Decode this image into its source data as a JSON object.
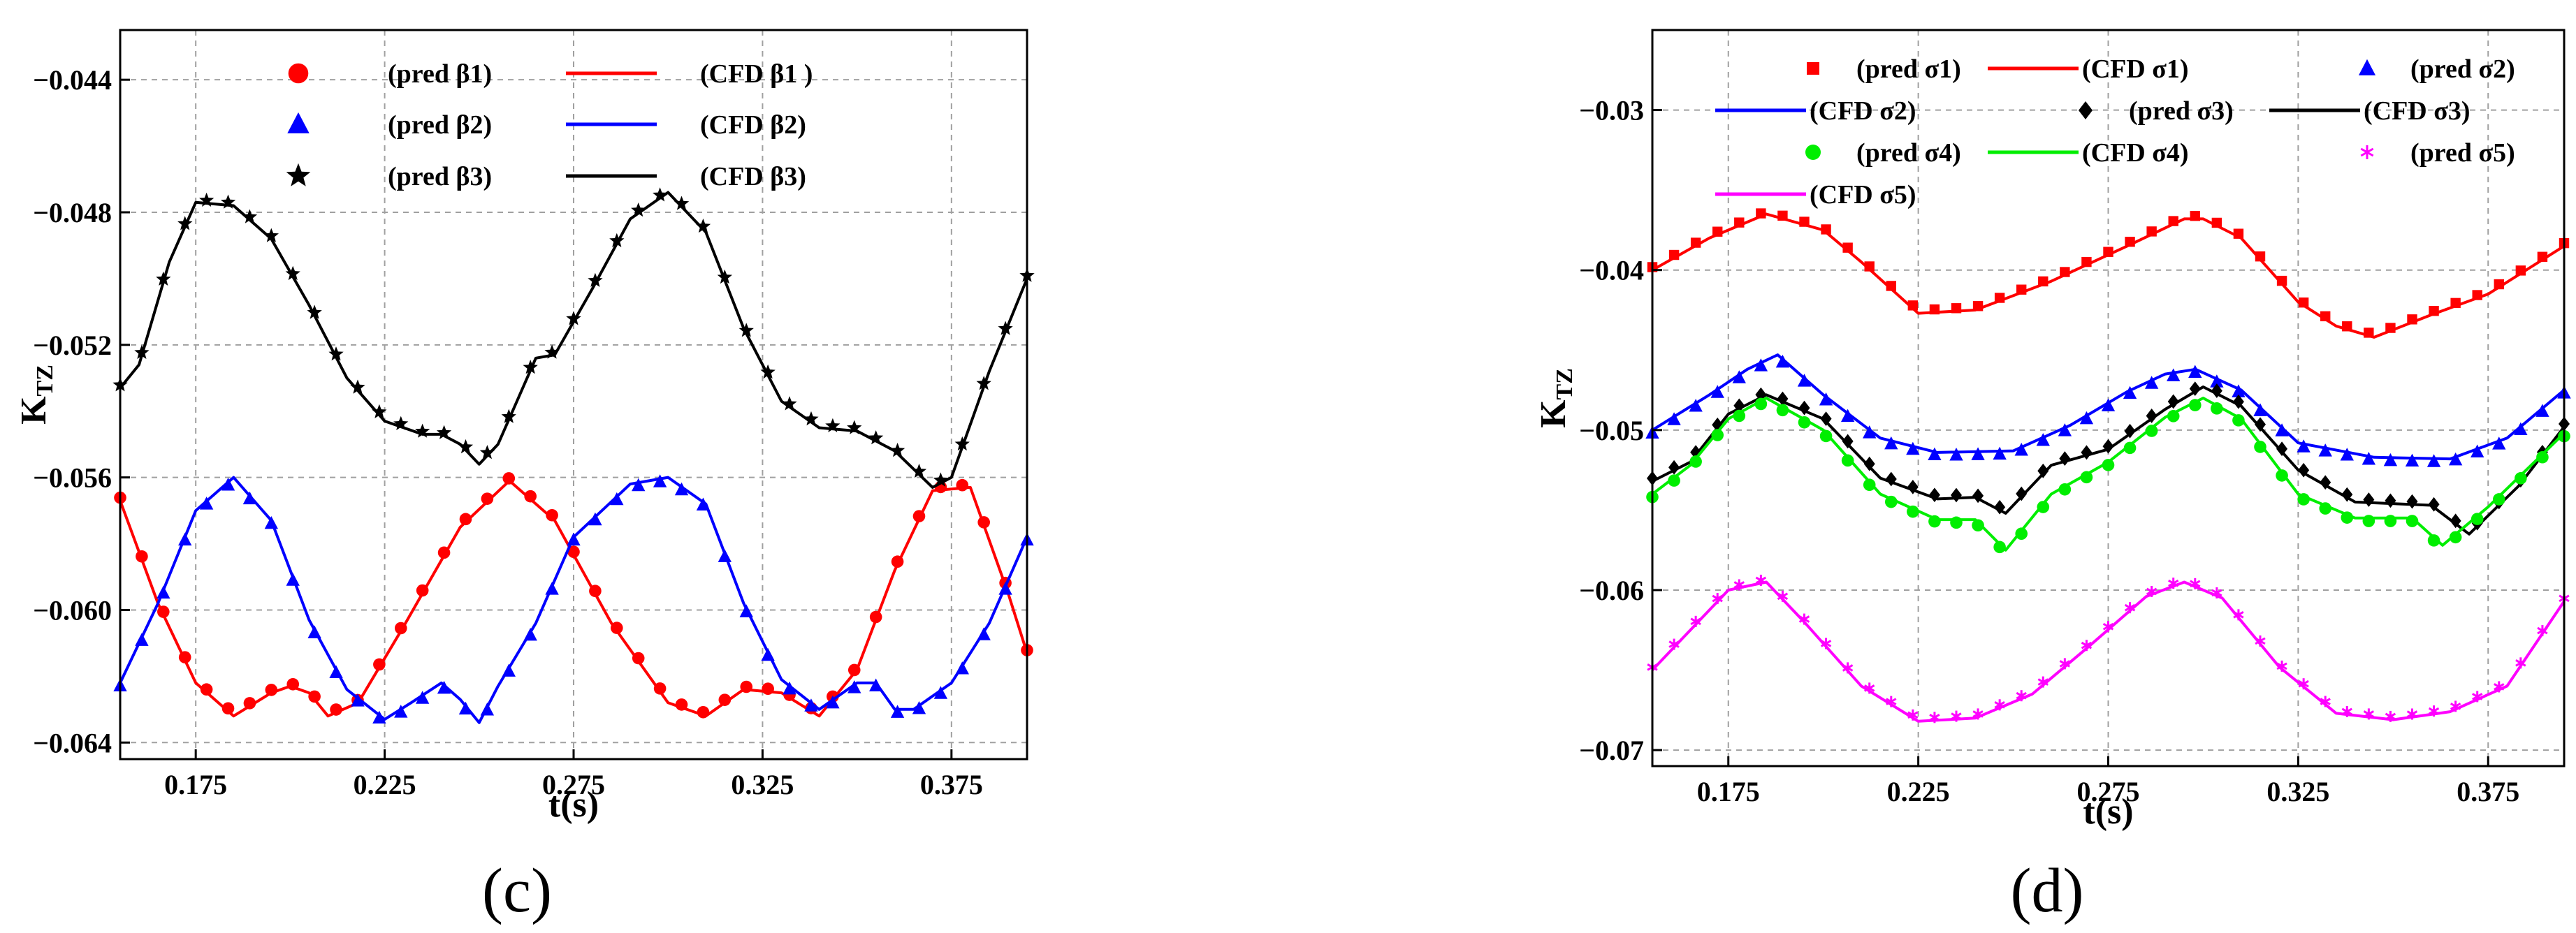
{
  "chart_data": [
    {
      "type": "line",
      "panel_label": "(c)",
      "xlabel": "t(s)",
      "ylabel": "K",
      "ylabel_sub": "TZ",
      "xlim": [
        0.155,
        0.395
      ],
      "ylim": [
        -0.0645,
        -0.0425
      ],
      "xticks": [
        0.175,
        0.225,
        0.275,
        0.325,
        0.375
      ],
      "xtick_labels": [
        "0.175",
        "0.225",
        "0.275",
        "0.325",
        "0.375"
      ],
      "yticks": [
        -0.044,
        -0.048,
        -0.052,
        -0.056,
        -0.06,
        -0.064
      ],
      "ytick_labels": [
        "−0.044",
        "−0.048",
        "−0.052",
        "−0.056",
        "−0.060",
        "−0.064"
      ],
      "grid": true,
      "legend_position": "top-center",
      "series": [
        {
          "name": "β1",
          "pred_label": "(pred    β1)",
          "cfd_label": "(CFD    β1 )",
          "color": "#ff0000",
          "marker": "circle",
          "x": [
            0.155,
            0.165,
            0.175,
            0.185,
            0.195,
            0.2,
            0.205,
            0.21,
            0.218,
            0.23,
            0.245,
            0.258,
            0.27,
            0.285,
            0.3,
            0.31,
            0.32,
            0.33,
            0.34,
            0.35,
            0.36,
            0.37,
            0.38,
            0.39,
            0.395
          ],
          "y": [
            -0.0567,
            -0.0598,
            -0.0622,
            -0.0632,
            -0.0625,
            -0.0623,
            -0.0625,
            -0.0632,
            -0.0628,
            -0.0605,
            -0.0575,
            -0.0561,
            -0.0573,
            -0.0604,
            -0.0628,
            -0.0632,
            -0.0624,
            -0.0625,
            -0.0632,
            -0.0618,
            -0.0588,
            -0.0564,
            -0.0563,
            -0.0595,
            -0.0613
          ]
        },
        {
          "name": "β2",
          "pred_label": "(pred    β2)",
          "cfd_label": "(CFD    β2)",
          "color": "#0000ff",
          "marker": "triangle",
          "x": [
            0.155,
            0.165,
            0.175,
            0.185,
            0.195,
            0.205,
            0.215,
            0.225,
            0.232,
            0.24,
            0.245,
            0.25,
            0.255,
            0.265,
            0.275,
            0.29,
            0.3,
            0.31,
            0.32,
            0.33,
            0.34,
            0.35,
            0.355,
            0.36,
            0.365,
            0.375,
            0.385,
            0.395
          ],
          "y": [
            -0.0622,
            -0.0598,
            -0.057,
            -0.056,
            -0.0573,
            -0.0603,
            -0.0624,
            -0.0633,
            -0.0628,
            -0.0622,
            -0.0627,
            -0.0634,
            -0.0623,
            -0.0604,
            -0.0578,
            -0.0562,
            -0.056,
            -0.0568,
            -0.0598,
            -0.0621,
            -0.063,
            -0.0622,
            -0.0622,
            -0.063,
            -0.063,
            -0.0622,
            -0.0604,
            -0.0578
          ]
        },
        {
          "name": "β3",
          "pred_label": "(pred    β3)",
          "cfd_label": "(CFD    β3)",
          "color": "#000000",
          "marker": "star",
          "x": [
            0.155,
            0.16,
            0.168,
            0.175,
            0.185,
            0.195,
            0.205,
            0.215,
            0.225,
            0.235,
            0.24,
            0.245,
            0.25,
            0.255,
            0.26,
            0.265,
            0.27,
            0.28,
            0.29,
            0.3,
            0.31,
            0.32,
            0.33,
            0.34,
            0.35,
            0.36,
            0.37,
            0.375,
            0.385,
            0.395
          ],
          "y": [
            -0.0533,
            -0.0526,
            -0.0495,
            -0.0477,
            -0.0478,
            -0.0488,
            -0.0508,
            -0.053,
            -0.0543,
            -0.0547,
            -0.0547,
            -0.055,
            -0.0556,
            -0.055,
            -0.0537,
            -0.0524,
            -0.0523,
            -0.0503,
            -0.0482,
            -0.0474,
            -0.0486,
            -0.0515,
            -0.0537,
            -0.0545,
            -0.0546,
            -0.0552,
            -0.0563,
            -0.056,
            -0.0528,
            -0.05
          ]
        }
      ]
    },
    {
      "type": "line",
      "panel_label": "(d)",
      "xlabel": "t(s)",
      "ylabel": "K",
      "ylabel_sub": "TZ",
      "xlim": [
        0.155,
        0.395
      ],
      "ylim": [
        -0.071,
        -0.025
      ],
      "xticks": [
        0.175,
        0.225,
        0.275,
        0.325,
        0.375
      ],
      "xtick_labels": [
        "0.175",
        "0.225",
        "0.275",
        "0.325",
        "0.375"
      ],
      "yticks": [
        -0.03,
        -0.04,
        -0.05,
        -0.06,
        -0.07
      ],
      "ytick_labels": [
        "−0.03",
        "−0.04",
        "−0.05",
        "−0.06",
        "−0.07"
      ],
      "grid": true,
      "legend_position": "top",
      "legend_items": [
        {
          "label": "(pred   σ1)",
          "kind": "marker",
          "series": 0
        },
        {
          "label": "(CFD   σ1)",
          "kind": "line",
          "series": 0
        },
        {
          "label": "(pred   σ2)",
          "kind": "marker",
          "series": 1
        },
        {
          "label": "(CFD   σ2)",
          "kind": "line",
          "series": 1
        },
        {
          "label": "(pred   σ3)",
          "kind": "marker",
          "series": 2
        },
        {
          "label": "(CFD   σ3)",
          "kind": "line",
          "series": 2
        },
        {
          "label": "(pred   σ4)",
          "kind": "marker",
          "series": 3
        },
        {
          "label": "(CFD   σ4)",
          "kind": "line",
          "series": 3
        },
        {
          "label": "(pred   σ5)",
          "kind": "marker",
          "series": 4
        },
        {
          "label": "(CFD   σ5)",
          "kind": "line",
          "series": 4
        }
      ],
      "series": [
        {
          "name": "σ1",
          "color": "#ff0000",
          "marker": "square",
          "x": [
            0.155,
            0.17,
            0.185,
            0.2,
            0.21,
            0.225,
            0.24,
            0.26,
            0.28,
            0.295,
            0.3,
            0.31,
            0.325,
            0.335,
            0.345,
            0.36,
            0.375,
            0.395
          ],
          "y": [
            -0.04,
            -0.038,
            -0.0365,
            -0.0375,
            -0.0395,
            -0.0427,
            -0.0425,
            -0.0407,
            -0.0385,
            -0.0368,
            -0.0368,
            -0.038,
            -0.042,
            -0.0435,
            -0.0442,
            -0.0428,
            -0.0415,
            -0.0385
          ]
        },
        {
          "name": "σ2",
          "color": "#0000ff",
          "marker": "triangle",
          "x": [
            0.155,
            0.17,
            0.18,
            0.188,
            0.2,
            0.215,
            0.23,
            0.25,
            0.265,
            0.28,
            0.29,
            0.298,
            0.31,
            0.325,
            0.345,
            0.365,
            0.38,
            0.395
          ],
          "y": [
            -0.05,
            -0.0478,
            -0.0462,
            -0.0453,
            -0.0478,
            -0.0505,
            -0.0514,
            -0.0513,
            -0.0497,
            -0.0476,
            -0.0465,
            -0.0462,
            -0.0475,
            -0.0508,
            -0.0517,
            -0.0518,
            -0.0505,
            -0.0475
          ]
        },
        {
          "name": "σ3",
          "color": "#000000",
          "marker": "diamond",
          "x": [
            0.155,
            0.165,
            0.175,
            0.185,
            0.2,
            0.215,
            0.23,
            0.24,
            0.248,
            0.26,
            0.275,
            0.29,
            0.3,
            0.31,
            0.325,
            0.34,
            0.36,
            0.37,
            0.383,
            0.395
          ],
          "y": [
            -0.0532,
            -0.052,
            -0.049,
            -0.0478,
            -0.0493,
            -0.053,
            -0.0543,
            -0.0542,
            -0.0552,
            -0.0522,
            -0.0512,
            -0.0487,
            -0.0473,
            -0.0485,
            -0.0525,
            -0.0545,
            -0.0547,
            -0.0565,
            -0.0535,
            -0.0498
          ]
        },
        {
          "name": "σ4",
          "color": "#00ee00",
          "marker": "circle",
          "x": [
            0.155,
            0.165,
            0.175,
            0.185,
            0.2,
            0.215,
            0.23,
            0.24,
            0.248,
            0.26,
            0.275,
            0.29,
            0.3,
            0.31,
            0.325,
            0.34,
            0.355,
            0.363,
            0.375,
            0.395
          ],
          "y": [
            -0.054,
            -0.0522,
            -0.0493,
            -0.048,
            -0.05,
            -0.054,
            -0.0556,
            -0.0556,
            -0.0575,
            -0.054,
            -0.052,
            -0.0492,
            -0.048,
            -0.0493,
            -0.054,
            -0.0555,
            -0.0555,
            -0.0572,
            -0.0548,
            -0.0502
          ]
        },
        {
          "name": "σ5",
          "color": "#ff00ff",
          "marker": "asterisk",
          "x": [
            0.155,
            0.165,
            0.175,
            0.185,
            0.195,
            0.21,
            0.225,
            0.24,
            0.255,
            0.27,
            0.285,
            0.295,
            0.305,
            0.32,
            0.335,
            0.35,
            0.365,
            0.38,
            0.395
          ],
          "y": [
            -0.065,
            -0.0625,
            -0.06,
            -0.0595,
            -0.062,
            -0.066,
            -0.0682,
            -0.068,
            -0.0665,
            -0.0635,
            -0.0604,
            -0.0595,
            -0.0605,
            -0.0648,
            -0.0677,
            -0.0681,
            -0.0676,
            -0.066,
            -0.0607
          ]
        }
      ]
    }
  ]
}
